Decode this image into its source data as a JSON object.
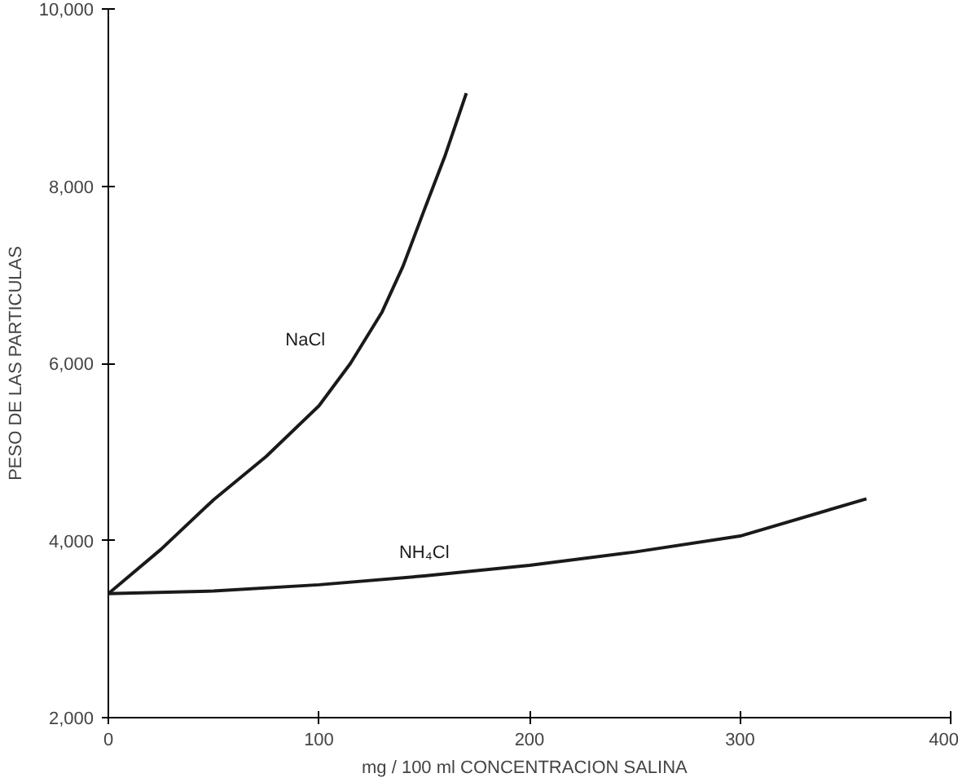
{
  "chart_data": {
    "type": "line",
    "xlabel": "mg / 100 ml   CONCENTRACION SALINA",
    "ylabel": "PESO DE LAS PARTICULAS",
    "xlim": [
      0,
      400
    ],
    "xticks": [
      0,
      100,
      200,
      300,
      400
    ],
    "ylim": [
      2000,
      10000
    ],
    "yticks": [
      {
        "value": 2000,
        "label": "2,000"
      },
      {
        "value": 4000,
        "label": "4,000"
      },
      {
        "value": 6000,
        "label": "6,000"
      },
      {
        "value": 8000,
        "label": "8,000"
      },
      {
        "value": 10000,
        "label": "10,000"
      }
    ],
    "grid": false,
    "marker": "none",
    "line_style": "solid",
    "series": [
      {
        "name": "NaCl",
        "color": "#1a1a1a",
        "x": [
          0,
          25,
          50,
          75,
          100,
          115,
          130,
          140,
          150,
          160,
          170
        ],
        "values": [
          3400,
          3900,
          4460,
          4950,
          5520,
          6000,
          6580,
          7100,
          7730,
          8350,
          9050
        ]
      },
      {
        "name": "NH₄Cl",
        "color": "#1a1a1a",
        "x": [
          0,
          50,
          100,
          150,
          200,
          250,
          300,
          360
        ],
        "values": [
          3400,
          3430,
          3500,
          3600,
          3720,
          3870,
          4050,
          4470
        ]
      }
    ]
  }
}
